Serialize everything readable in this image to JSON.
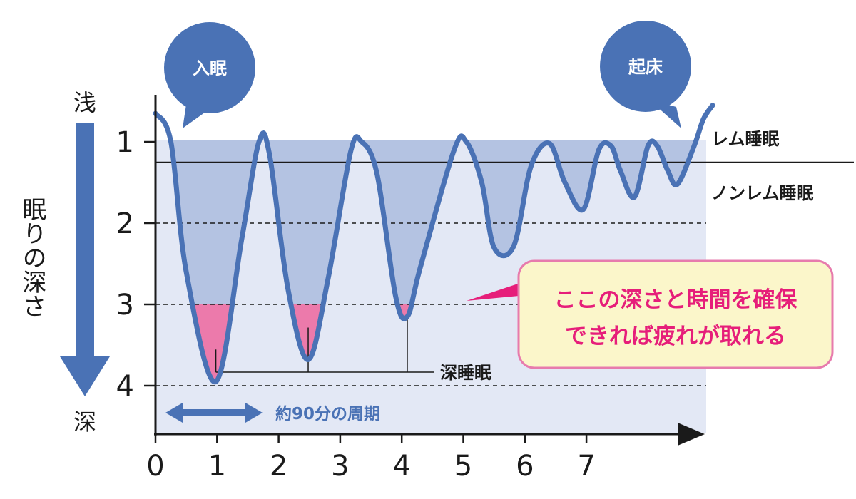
{
  "chart_data": {
    "type": "line",
    "x_ticks": [
      0,
      1,
      2,
      3,
      4,
      5,
      6,
      7
    ],
    "x_tick_labels": [
      "0",
      "1",
      "2",
      "3",
      "4",
      "5",
      "6",
      "7"
    ],
    "y_ticks": [
      1,
      2,
      3,
      4
    ],
    "y_tick_labels": [
      "1",
      "2",
      "3",
      "4"
    ],
    "xlim": [
      0,
      9
    ],
    "ylim": [
      4.6,
      0.4
    ],
    "y_inverted": true,
    "grid_dashed_levels": [
      2,
      3,
      4
    ],
    "rem_boundary_level": 1.25,
    "deep_sleep_threshold": 3,
    "series": [
      {
        "points": [
          [
            0.0,
            0.65
          ],
          [
            0.25,
            1.0
          ],
          [
            0.5,
            2.6
          ],
          [
            0.98,
            3.95
          ],
          [
            1.4,
            2.2
          ],
          [
            1.68,
            1.0
          ],
          [
            1.85,
            1.15
          ],
          [
            2.15,
            2.8
          ],
          [
            2.48,
            3.68
          ],
          [
            2.8,
            2.7
          ],
          [
            3.17,
            1.12
          ],
          [
            3.35,
            1.0
          ],
          [
            3.6,
            1.4
          ],
          [
            3.9,
            2.9
          ],
          [
            4.09,
            3.15
          ],
          [
            4.3,
            2.55
          ],
          [
            4.85,
            1.1
          ],
          [
            5.05,
            1.0
          ],
          [
            5.3,
            1.5
          ],
          [
            5.5,
            2.3
          ],
          [
            5.82,
            2.28
          ],
          [
            6.1,
            1.3
          ],
          [
            6.4,
            1.02
          ],
          [
            6.65,
            1.5
          ],
          [
            6.95,
            1.83
          ],
          [
            7.2,
            1.1
          ],
          [
            7.4,
            1.05
          ],
          [
            7.55,
            1.35
          ],
          [
            7.78,
            1.68
          ],
          [
            8.0,
            1.05
          ],
          [
            8.15,
            1.05
          ],
          [
            8.32,
            1.35
          ],
          [
            8.48,
            1.52
          ],
          [
            8.75,
            1.05
          ],
          [
            8.9,
            0.72
          ],
          [
            9.05,
            0.55
          ]
        ],
        "deep_troughs": [
          [
            0.98,
            3.95
          ],
          [
            2.48,
            3.68
          ],
          [
            4.09,
            3.15
          ]
        ]
      }
    ]
  },
  "labels": {
    "y_top": "浅",
    "y_bottom": "深",
    "y_axis_title": "眠りの深さ",
    "rem": "レム睡眠",
    "non_rem": "ノンレム睡眠",
    "deep_sleep": "深睡眠",
    "cycle": "約90分の周期",
    "bubble_left": "入眠",
    "bubble_right": "起床",
    "callout_line1": "ここの深さと時間を確保",
    "callout_line2": "できれば疲れが取れる"
  },
  "colors": {
    "curve": "#4a72b5",
    "fill_light": "#b4c3e2",
    "plot_bg": "#e3e8f5",
    "deep": "#ec7aab",
    "accent_blue": "#4a72b5",
    "callout_text": "#e61e7a",
    "callout_bg": "#fbf6ca",
    "callout_border": "#e77bad",
    "axis": "#1a1a1a"
  }
}
